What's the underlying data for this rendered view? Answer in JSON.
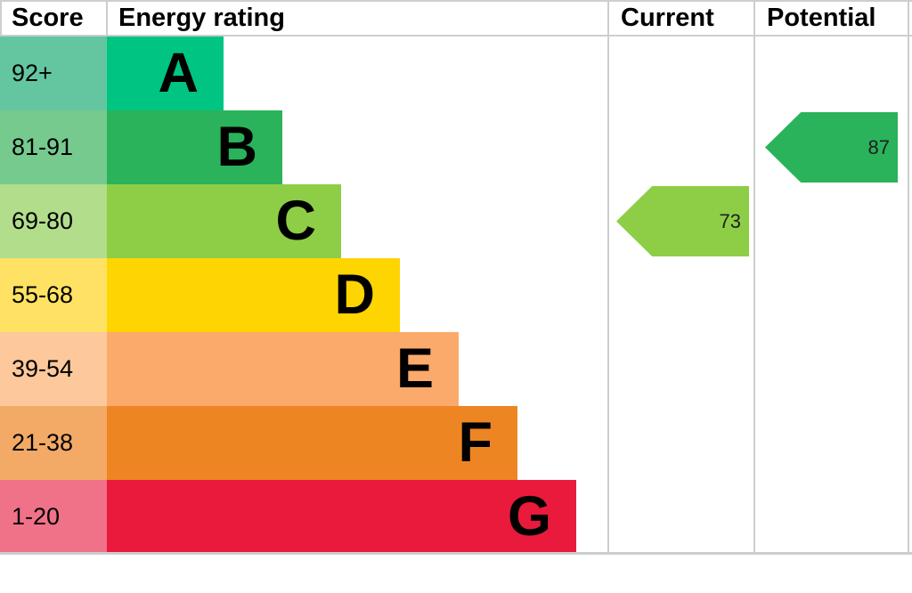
{
  "header": {
    "score": "Score",
    "energy_rating": "Energy rating",
    "current": "Current",
    "potential": "Potential"
  },
  "bands": [
    {
      "grade": "A",
      "score_range": "92+",
      "bar_color": "#00c482",
      "score_bg": "#63c6a0"
    },
    {
      "grade": "B",
      "score_range": "81-91",
      "bar_color": "#2ab35b",
      "score_bg": "#76ca8e"
    },
    {
      "grade": "C",
      "score_range": "69-80",
      "bar_color": "#8dce46",
      "score_bg": "#b2dd8b"
    },
    {
      "grade": "D",
      "score_range": "55-68",
      "bar_color": "#fed401",
      "score_bg": "#ffe263"
    },
    {
      "grade": "E",
      "score_range": "39-54",
      "bar_color": "#fbaa6b",
      "score_bg": "#fdc89b"
    },
    {
      "grade": "F",
      "score_range": "21-38",
      "bar_color": "#ee8523",
      "score_bg": "#f3aa66"
    },
    {
      "grade": "G",
      "score_range": "1-20",
      "bar_color": "#e91a3c",
      "score_bg": "#ef7288"
    }
  ],
  "pointers": {
    "current": {
      "label": "Current",
      "value": "73",
      "band": "C",
      "color": "#8dce46"
    },
    "potential": {
      "label": "Potential",
      "value": "87",
      "band": "B",
      "color": "#2ab35b"
    }
  },
  "chart_data": {
    "type": "bar",
    "title": "Energy rating",
    "categories": [
      "A",
      "B",
      "C",
      "D",
      "E",
      "F",
      "G"
    ],
    "score_ranges": [
      "92+",
      "81-91",
      "69-80",
      "55-68",
      "39-54",
      "21-38",
      "1-20"
    ],
    "band_colors": [
      "#00c482",
      "#2ab35b",
      "#8dce46",
      "#fed401",
      "#fbaa6b",
      "#ee8523",
      "#e91a3c"
    ],
    "bar_relative_lengths": [
      1,
      2,
      3,
      4,
      5,
      6,
      7
    ],
    "columns": [
      "Score",
      "Energy rating",
      "Current",
      "Potential"
    ],
    "current": 73,
    "current_band": "C",
    "potential": 87,
    "potential_band": "B",
    "legend_position": "none",
    "grid": false
  }
}
